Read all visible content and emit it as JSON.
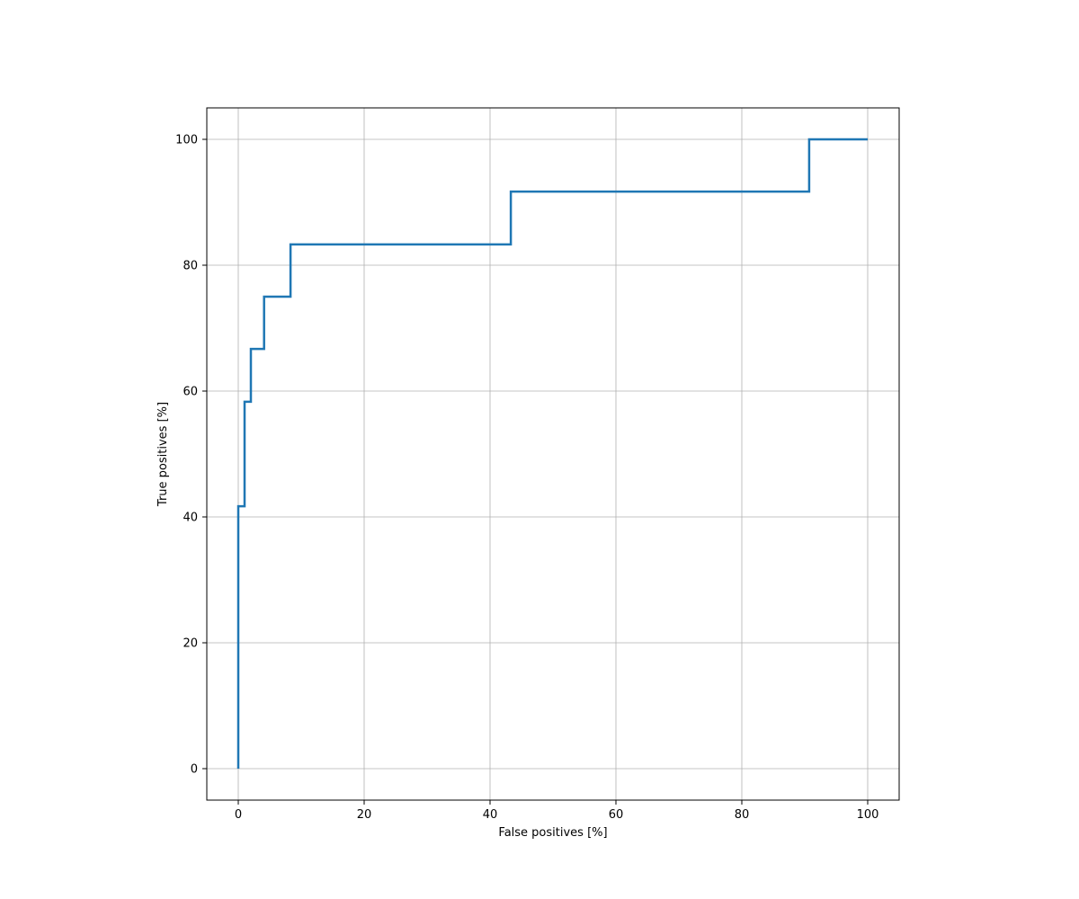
{
  "chart_data": {
    "type": "line",
    "title": "",
    "xlabel": "False positives [%]",
    "ylabel": "True positives [%]",
    "xlim": [
      -5,
      105
    ],
    "ylim": [
      -5,
      105
    ],
    "xticks": [
      0,
      20,
      40,
      60,
      80,
      100
    ],
    "yticks": [
      0,
      20,
      40,
      60,
      80,
      100
    ],
    "grid": true,
    "legend": "none",
    "series": [
      {
        "color": "#1f77b4",
        "drawstyle": "steps-post",
        "x": [
          0,
          0,
          1,
          2,
          4.1,
          8.3,
          43.3,
          90.7,
          100
        ],
        "y": [
          0,
          41.7,
          58.3,
          66.7,
          75,
          83.3,
          91.7,
          100,
          100
        ]
      }
    ]
  }
}
